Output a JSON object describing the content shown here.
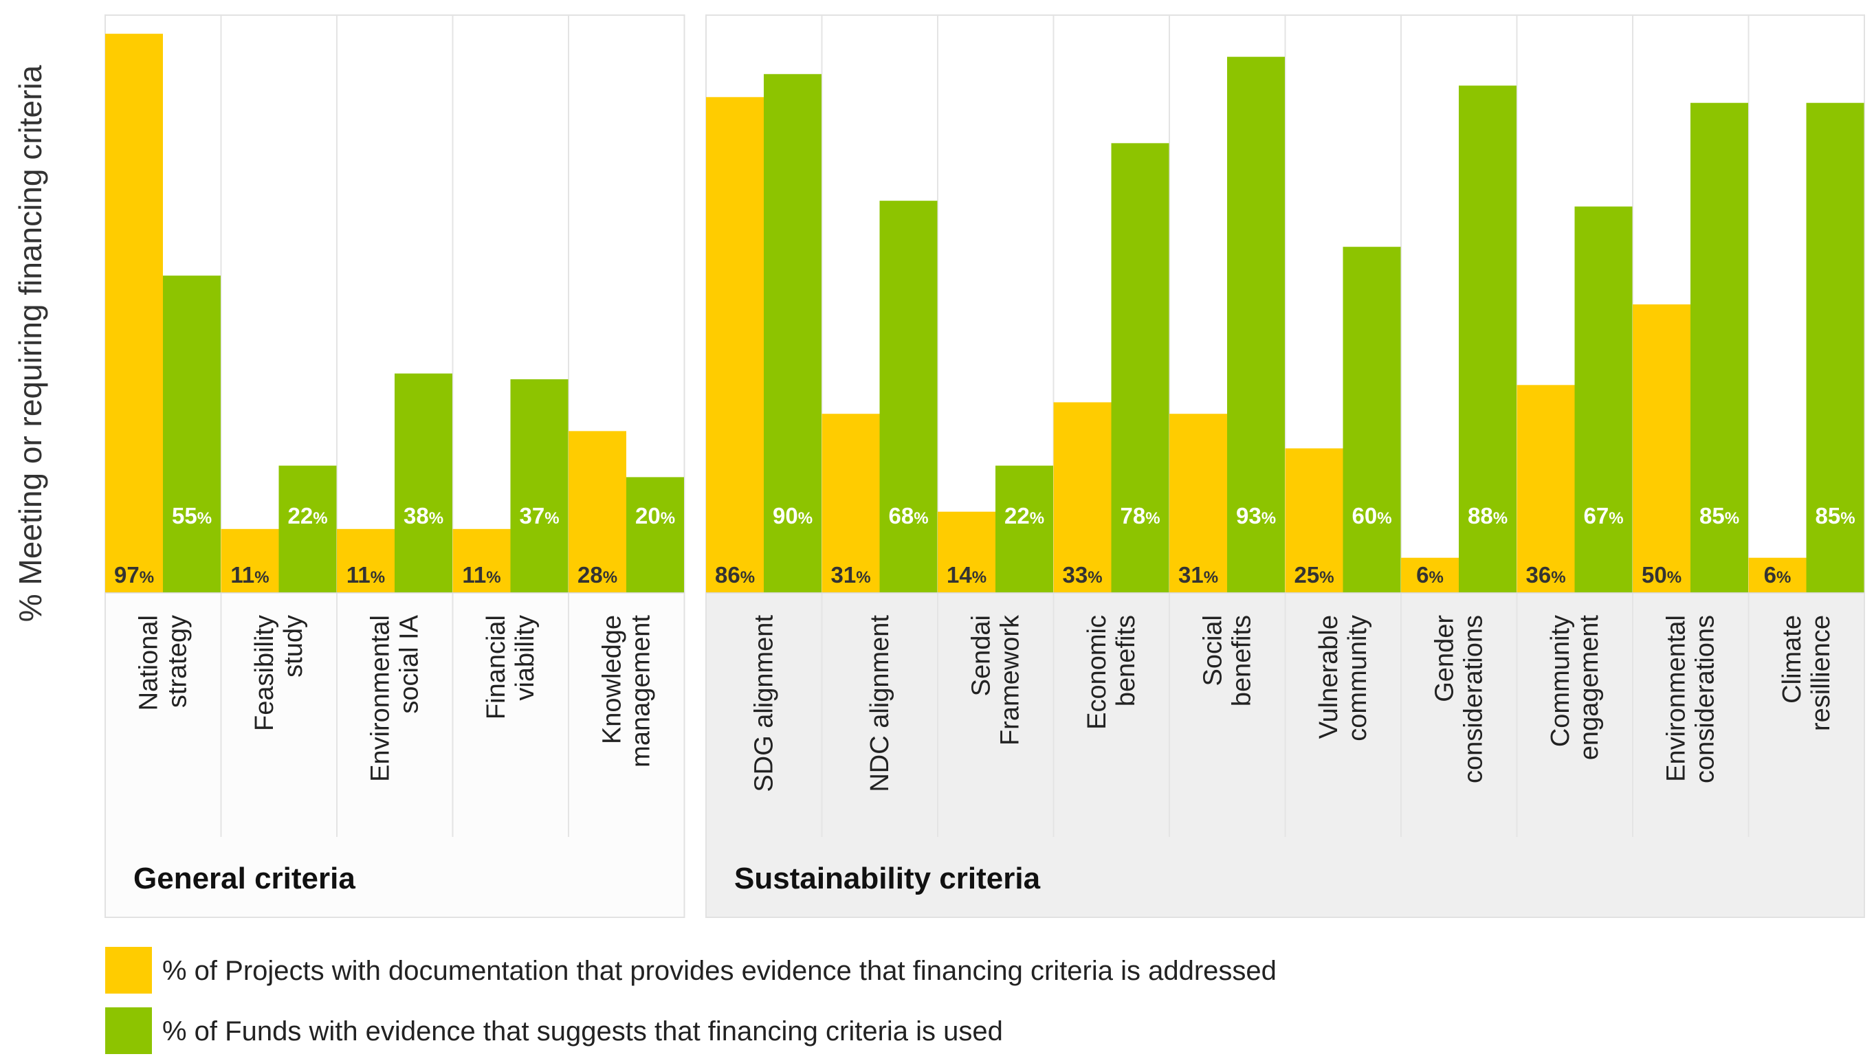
{
  "chart_data": {
    "type": "bar",
    "ylabel": "% Meeting or requiring financing criteria",
    "ylim": [
      0,
      100
    ],
    "value_suffix": "%",
    "colors": {
      "projects": "#FFCC00",
      "funds": "#8DC400",
      "panel_general_bg": "#FCFCFC",
      "panel_sustain_bg": "#EFEFEF"
    },
    "groups": [
      {
        "name": "General criteria",
        "categories": [
          {
            "label_lines": [
              "National",
              "strategy"
            ],
            "projects": 97,
            "funds": 55
          },
          {
            "label_lines": [
              "Feasibility",
              "study"
            ],
            "projects": 11,
            "funds": 22
          },
          {
            "label_lines": [
              "Environmental",
              "social IA"
            ],
            "projects": 11,
            "funds": 38
          },
          {
            "label_lines": [
              "Financial",
              "viability"
            ],
            "projects": 11,
            "funds": 37
          },
          {
            "label_lines": [
              "Knowledge",
              "management"
            ],
            "projects": 28,
            "funds": 20
          }
        ]
      },
      {
        "name": "Sustainability criteria",
        "categories": [
          {
            "label_lines": [
              "SDG alignment"
            ],
            "projects": 86,
            "funds": 90
          },
          {
            "label_lines": [
              "NDC alignment"
            ],
            "projects": 31,
            "funds": 68
          },
          {
            "label_lines": [
              "Sendai",
              "Framework"
            ],
            "projects": 14,
            "funds": 22
          },
          {
            "label_lines": [
              "Economic",
              "benefits"
            ],
            "projects": 33,
            "funds": 78
          },
          {
            "label_lines": [
              "Social",
              "benefits"
            ],
            "projects": 31,
            "funds": 93
          },
          {
            "label_lines": [
              "Vulnerable",
              "community"
            ],
            "projects": 25,
            "funds": 60
          },
          {
            "label_lines": [
              "Gender",
              "considerations"
            ],
            "projects": 6,
            "funds": 88
          },
          {
            "label_lines": [
              "Community",
              "engagement"
            ],
            "projects": 36,
            "funds": 67
          },
          {
            "label_lines": [
              "Environmental",
              "considerations"
            ],
            "projects": 50,
            "funds": 85
          },
          {
            "label_lines": [
              "Climate",
              "resillience"
            ],
            "projects": 6,
            "funds": 85
          }
        ]
      }
    ],
    "series": [
      {
        "key": "projects",
        "name": "% of Projects with documentation that provides evidence that financing criteria is addressed"
      },
      {
        "key": "funds",
        "name": "% of Funds with evidence that suggests that financing criteria is used"
      }
    ],
    "legend_position": "bottom-left"
  }
}
